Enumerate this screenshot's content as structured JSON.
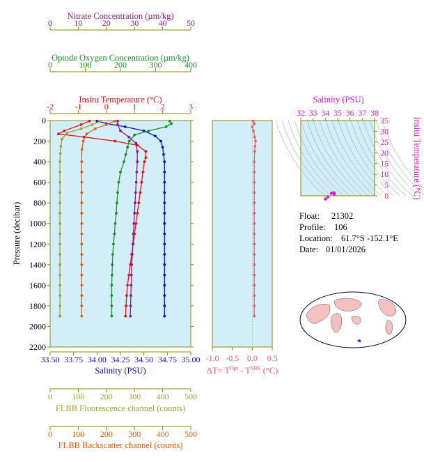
{
  "colors": {
    "nitrate": "#8b1a8b",
    "oxygen": "#1a8c2a",
    "temperature": "#e8101a",
    "salinity": "#1010c8",
    "fluorescence": "#a0a030",
    "backscatter": "#e06010",
    "delta_t": "#f06060",
    "ts_axis": "#e010e0",
    "panel_bg": "#d2eef8",
    "frame": "#8b8b00"
  },
  "info": {
    "float_label": "Float:",
    "float_value": "21302",
    "profile_label": "Profile:",
    "profile_value": "106",
    "location_label": "Location:",
    "location_value": "61.7°S  -152.1°E",
    "date_label": "Date:",
    "date_value": "01/01/2026"
  },
  "chart_data": [
    {
      "type": "line",
      "id": "main-profile",
      "ylabel": "Pressure (decibar)",
      "ylim": [
        0,
        2200
      ],
      "y_ticks": [
        0,
        200,
        400,
        600,
        800,
        1000,
        1200,
        1400,
        1600,
        1800,
        2000,
        2200
      ],
      "grid": false,
      "axes": [
        {
          "key": "nitrate",
          "label": "Nitrate Concentration (µm/kg)",
          "range": [
            0,
            50
          ],
          "ticks": [
            0,
            10,
            20,
            30,
            40,
            50
          ]
        },
        {
          "key": "oxygen",
          "label": "Optode Oxygen Concentration (µm/kg)",
          "range": [
            0,
            400
          ],
          "ticks": [
            0,
            100,
            200,
            300,
            400
          ]
        },
        {
          "key": "temperature",
          "label": "Insitu Temperature (°C)",
          "range": [
            -2,
            3
          ],
          "ticks": [
            -2,
            -1,
            0,
            1,
            2,
            3
          ]
        },
        {
          "key": "salinity",
          "label": "Salinity (PSU)",
          "range": [
            33.5,
            35.0
          ],
          "ticks": [
            "33.50",
            "33.75",
            "34.00",
            "34.25",
            "34.50",
            "34.75",
            "35.00"
          ]
        },
        {
          "key": "fluorescence",
          "label": "FLBB Fluorescence channel (counts)",
          "range": [
            0,
            500
          ],
          "ticks": [
            0,
            100,
            200,
            300,
            400,
            500
          ]
        },
        {
          "key": "backscatter",
          "label": "FLBB Backscatter channel (counts)",
          "range": [
            0,
            500
          ],
          "ticks": [
            0,
            100,
            200,
            300,
            400,
            500
          ]
        }
      ],
      "series": [
        {
          "key": "salinity",
          "values": [
            [
              34.0,
              5
            ],
            [
              34.1,
              30
            ],
            [
              34.3,
              60
            ],
            [
              34.5,
              100
            ],
            [
              34.62,
              150
            ],
            [
              34.68,
              200
            ],
            [
              34.7,
              260
            ],
            [
              34.71,
              330
            ],
            [
              34.72,
              400
            ],
            [
              34.72,
              500
            ],
            [
              34.72,
              600
            ],
            [
              34.72,
              700
            ],
            [
              34.72,
              800
            ],
            [
              34.72,
              900
            ],
            [
              34.72,
              1000
            ],
            [
              34.72,
              1100
            ],
            [
              34.72,
              1200
            ],
            [
              34.72,
              1300
            ],
            [
              34.72,
              1400
            ],
            [
              34.72,
              1500
            ],
            [
              34.72,
              1600
            ],
            [
              34.72,
              1700
            ],
            [
              34.72,
              1800
            ],
            [
              34.72,
              1900
            ]
          ]
        },
        {
          "key": "temperature",
          "values": [
            [
              -0.6,
              5
            ],
            [
              -0.9,
              40
            ],
            [
              -1.5,
              100
            ],
            [
              -1.7,
              130
            ],
            [
              -0.8,
              160
            ],
            [
              0.3,
              200
            ],
            [
              1.1,
              240
            ],
            [
              1.4,
              300
            ],
            [
              1.4,
              360
            ],
            [
              1.35,
              400
            ],
            [
              1.3,
              500
            ],
            [
              1.25,
              600
            ],
            [
              1.2,
              700
            ],
            [
              1.15,
              800
            ],
            [
              1.1,
              900
            ],
            [
              1.05,
              1000
            ],
            [
              1.0,
              1100
            ],
            [
              0.95,
              1200
            ],
            [
              0.9,
              1300
            ],
            [
              0.85,
              1400
            ],
            [
              0.8,
              1500
            ],
            [
              0.75,
              1600
            ],
            [
              0.72,
              1700
            ],
            [
              0.7,
              1800
            ],
            [
              0.68,
              1900
            ]
          ]
        },
        {
          "key": "oxygen",
          "values": [
            [
              340,
              5
            ],
            [
              345,
              30
            ],
            [
              330,
              60
            ],
            [
              280,
              100
            ],
            [
              240,
              140
            ],
            [
              225,
              200
            ],
            [
              220,
              260
            ],
            [
              215,
              330
            ],
            [
              210,
              400
            ],
            [
              200,
              500
            ],
            [
              195,
              600
            ],
            [
              192,
              700
            ],
            [
              190,
              800
            ],
            [
              188,
              900
            ],
            [
              185,
              1000
            ],
            [
              183,
              1100
            ],
            [
              180,
              1200
            ],
            [
              178,
              1300
            ],
            [
              177,
              1400
            ],
            [
              176,
              1500
            ],
            [
              175,
              1600
            ],
            [
              175,
              1700
            ],
            [
              175,
              1800
            ],
            [
              175,
              1900
            ]
          ]
        },
        {
          "key": "nitrate",
          "values": [
            [
              24,
              5
            ],
            [
              24,
              40
            ],
            [
              25,
              100
            ],
            [
              28,
              160
            ],
            [
              30.5,
              220
            ],
            [
              31,
              300
            ],
            [
              31,
              400
            ],
            [
              30.8,
              500
            ],
            [
              30.6,
              600
            ],
            [
              30.4,
              700
            ],
            [
              30.2,
              800
            ],
            [
              30,
              900
            ],
            [
              29.8,
              1000
            ],
            [
              29.6,
              1100
            ],
            [
              29.4,
              1200
            ],
            [
              29.2,
              1300
            ],
            [
              29,
              1400
            ],
            [
              28.9,
              1500
            ],
            [
              28.8,
              1600
            ],
            [
              28.7,
              1700
            ],
            [
              28.6,
              1800
            ],
            [
              28.5,
              1900
            ]
          ]
        },
        {
          "key": "fluorescence",
          "values": [
            [
              180,
              5
            ],
            [
              150,
              40
            ],
            [
              110,
              80
            ],
            [
              60,
              120
            ],
            [
              42,
              180
            ],
            [
              38,
              250
            ],
            [
              36,
              320
            ],
            [
              35,
              400
            ],
            [
              35,
              500
            ],
            [
              35,
              600
            ],
            [
              35,
              700
            ],
            [
              35,
              800
            ],
            [
              35,
              900
            ],
            [
              35,
              1000
            ],
            [
              35,
              1100
            ],
            [
              35,
              1200
            ],
            [
              35,
              1300
            ],
            [
              35,
              1400
            ],
            [
              35,
              1500
            ],
            [
              35,
              1600
            ],
            [
              35,
              1700
            ],
            [
              35,
              1800
            ],
            [
              35,
              1900
            ]
          ]
        },
        {
          "key": "backscatter",
          "values": [
            [
              230,
              5
            ],
            [
              200,
              40
            ],
            [
              160,
              80
            ],
            [
              130,
              130
            ],
            [
              118,
              200
            ],
            [
              113,
              280
            ],
            [
              112,
              400
            ],
            [
              112,
              500
            ],
            [
              112,
              600
            ],
            [
              112,
              700
            ],
            [
              112,
              800
            ],
            [
              112,
              900
            ],
            [
              112,
              1000
            ],
            [
              112,
              1100
            ],
            [
              112,
              1200
            ],
            [
              112,
              1300
            ],
            [
              112,
              1400
            ],
            [
              112,
              1500
            ],
            [
              112,
              1600
            ],
            [
              112,
              1700
            ],
            [
              112,
              1800
            ],
            [
              112,
              1900
            ]
          ]
        }
      ]
    },
    {
      "type": "line",
      "id": "delta-t",
      "xlabel": "ΔT= T<sup>Opt</sup> - T<sup>SBE</sup> (°C)",
      "xlim": [
        -1.0,
        0.5
      ],
      "x_ticks": [
        "-1.0",
        "-0.5",
        "0.0",
        "0.5"
      ],
      "ylim": [
        0,
        2200
      ],
      "values": [
        [
          0.02,
          5
        ],
        [
          0.05,
          30
        ],
        [
          0.0,
          60
        ],
        [
          0.03,
          100
        ],
        [
          0.06,
          160
        ],
        [
          0.08,
          200
        ],
        [
          0.07,
          250
        ],
        [
          0.06,
          300
        ],
        [
          0.05,
          400
        ],
        [
          0.05,
          500
        ],
        [
          0.05,
          600
        ],
        [
          0.05,
          700
        ],
        [
          0.05,
          800
        ],
        [
          0.05,
          900
        ],
        [
          0.05,
          1000
        ],
        [
          0.05,
          1100
        ],
        [
          0.05,
          1200
        ],
        [
          0.05,
          1300
        ],
        [
          0.05,
          1400
        ],
        [
          0.05,
          1500
        ],
        [
          0.05,
          1600
        ],
        [
          0.05,
          1700
        ],
        [
          0.05,
          1800
        ],
        [
          0.05,
          1900
        ]
      ]
    },
    {
      "type": "scatter",
      "id": "ts-diagram",
      "xlabel": "Salinity (PSU)",
      "ylabel": "Insitu Temperature (°C)",
      "xlim": [
        32,
        38
      ],
      "ylim": [
        0,
        35
      ],
      "x_ticks": [
        32,
        33,
        34,
        35,
        36,
        37,
        38
      ],
      "y_ticks": [
        0,
        5,
        10,
        15,
        20,
        25,
        30,
        35
      ],
      "values": [
        [
          34.7,
          1.0
        ],
        [
          34.7,
          1.4
        ],
        [
          34.5,
          1.2
        ],
        [
          34.2,
          -0.5
        ],
        [
          34.0,
          -1.5
        ],
        [
          34.72,
          0.8
        ]
      ]
    }
  ]
}
